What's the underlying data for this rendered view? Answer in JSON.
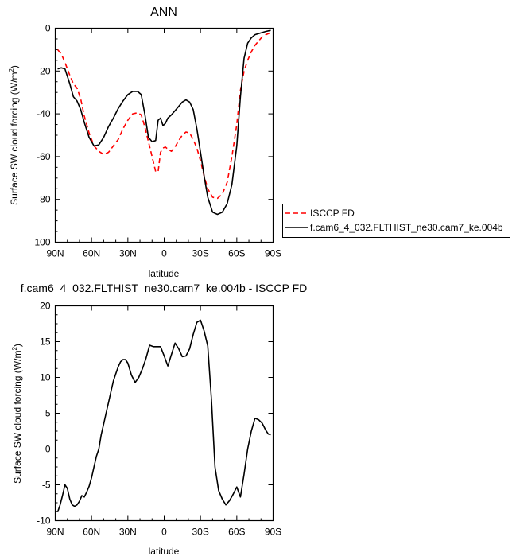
{
  "chart_data": [
    {
      "type": "line",
      "title": "ANN",
      "xlabel": "latitude",
      "ylabel": "Surface SW cloud forcing (W/m²)",
      "xlim": [
        90,
        -90
      ],
      "ylim": [
        -100,
        0
      ],
      "xticks": [
        90,
        60,
        30,
        0,
        -30,
        -60,
        -90
      ],
      "xtick_labels": [
        "90N",
        "60N",
        "30N",
        "0",
        "30S",
        "60S",
        "90S"
      ],
      "yticks": [
        0,
        -20,
        -40,
        -60,
        -80,
        -100
      ],
      "ytick_labels": [
        "0",
        "-20",
        "-40",
        "-60",
        "-80",
        "-100"
      ],
      "grid": false,
      "legend_position": "right",
      "series": [
        {
          "name": "ISCCP FD",
          "color": "#ff0000",
          "dash": "dashed",
          "x": [
            88,
            85,
            82,
            78,
            75,
            72,
            69,
            66,
            62,
            58,
            54,
            50,
            46,
            42,
            38,
            34,
            30,
            26,
            22,
            19,
            16,
            13,
            10,
            7,
            5,
            3,
            1,
            -1,
            -3,
            -6,
            -9,
            -12,
            -15,
            -18,
            -21,
            -24,
            -27,
            -30,
            -33,
            -36,
            -40,
            -44,
            -48,
            -52,
            -56,
            -60,
            -63,
            -66,
            -69,
            -72,
            -75,
            -78,
            -81,
            -84,
            -88
          ],
          "y": [
            -10,
            -12,
            -16,
            -22,
            -26,
            -28,
            -33,
            -41,
            -49,
            -55,
            -57.5,
            -59,
            -58,
            -55,
            -52,
            -47,
            -43,
            -40,
            -39.5,
            -40.5,
            -46,
            -53,
            -60,
            -67,
            -67,
            -58,
            -56,
            -55.5,
            -56.5,
            -57.5,
            -55.5,
            -52.5,
            -50,
            -48.5,
            -49,
            -52,
            -56,
            -62,
            -69,
            -75,
            -79,
            -79.5,
            -77.5,
            -72,
            -60,
            -45,
            -29,
            -20,
            -15,
            -11,
            -8,
            -6,
            -4,
            -3,
            -2
          ]
        },
        {
          "name": "f.cam6_4_032.FLTHIST_ne30.cam7_ke.004b",
          "color": "#000000",
          "dash": "solid",
          "x": [
            88,
            85,
            82,
            78,
            75,
            72,
            69,
            66,
            62,
            58,
            54,
            50,
            46,
            42,
            38,
            34,
            30,
            26,
            22,
            19,
            16,
            13,
            10,
            7,
            5,
            3,
            1,
            -1,
            -3,
            -6,
            -9,
            -12,
            -15,
            -18,
            -21,
            -24,
            -27,
            -30,
            -33,
            -36,
            -40,
            -44,
            -48,
            -52,
            -56,
            -60,
            -63,
            -66,
            -69,
            -72,
            -75,
            -78,
            -81,
            -84,
            -88
          ],
          "y": [
            -19,
            -18.5,
            -19,
            -26,
            -32,
            -34,
            -38,
            -44,
            -51,
            -55,
            -54.5,
            -51,
            -46,
            -42,
            -37.5,
            -34,
            -31,
            -29.5,
            -29.5,
            -31,
            -40,
            -51,
            -53,
            -52.5,
            -43,
            -42,
            -45.5,
            -44.5,
            -42,
            -40.5,
            -38.5,
            -36.5,
            -34.5,
            -33.5,
            -34.5,
            -38,
            -47,
            -58,
            -69,
            -79,
            -86,
            -87,
            -86,
            -82,
            -73,
            -55,
            -32,
            -14,
            -7,
            -4.5,
            -3,
            -2.5,
            -2,
            -1.5,
            -1
          ]
        }
      ]
    },
    {
      "type": "line",
      "title": "f.cam6_4_032.FLTHIST_ne30.cam7_ke.004b - ISCCP FD",
      "xlabel": "latitude",
      "ylabel": "Surface SW cloud forcing (W/m²)",
      "xlim": [
        90,
        -90
      ],
      "ylim": [
        -10,
        20
      ],
      "xticks": [
        90,
        60,
        30,
        0,
        -30,
        -60,
        -90
      ],
      "xtick_labels": [
        "90N",
        "60N",
        "30N",
        "0",
        "30S",
        "60S",
        "90S"
      ],
      "yticks": [
        20,
        15,
        10,
        5,
        0,
        -5,
        -10
      ],
      "ytick_labels": [
        "20",
        "15",
        "10",
        "5",
        "0",
        "-5",
        "-10"
      ],
      "grid": false,
      "series": [
        {
          "color": "#000000",
          "dash": "solid",
          "x": [
            88,
            86,
            84,
            82,
            80,
            78,
            76,
            74,
            72,
            70,
            68,
            66,
            64,
            62,
            60,
            58,
            56,
            54,
            52,
            50,
            48,
            46,
            44,
            42,
            40,
            38,
            36,
            34,
            32,
            30,
            27,
            24,
            21,
            18,
            15,
            12,
            9,
            6,
            3,
            0,
            -3,
            -6,
            -9,
            -12,
            -15,
            -18,
            -21,
            -24,
            -27,
            -30,
            -33,
            -36,
            -39,
            -42,
            -45,
            -48,
            -51,
            -54,
            -57,
            -60,
            -63,
            -66,
            -69,
            -72,
            -75,
            -78,
            -81,
            -84,
            -86,
            -88
          ],
          "y": [
            -8.8,
            -7.8,
            -6.5,
            -5,
            -5.5,
            -7,
            -7.8,
            -8,
            -7.8,
            -7.3,
            -6.5,
            -6.7,
            -6,
            -5.2,
            -4,
            -2.5,
            -1,
            0,
            2,
            3.5,
            5,
            6.5,
            8,
            9.5,
            10.5,
            11.5,
            12.2,
            12.5,
            12.5,
            12,
            10.3,
            9.3,
            10,
            11.2,
            12.7,
            14.5,
            14.3,
            14.3,
            14.3,
            13,
            11.6,
            13.2,
            14.8,
            14,
            12.9,
            13,
            14,
            16,
            17.7,
            18,
            16.5,
            14.4,
            7,
            -2.5,
            -5.8,
            -7,
            -7.8,
            -7.2,
            -6.3,
            -5.3,
            -6.7,
            -3.5,
            0,
            2.5,
            4.3,
            4.1,
            3.6,
            2.6,
            2.1,
            2
          ]
        }
      ]
    }
  ]
}
